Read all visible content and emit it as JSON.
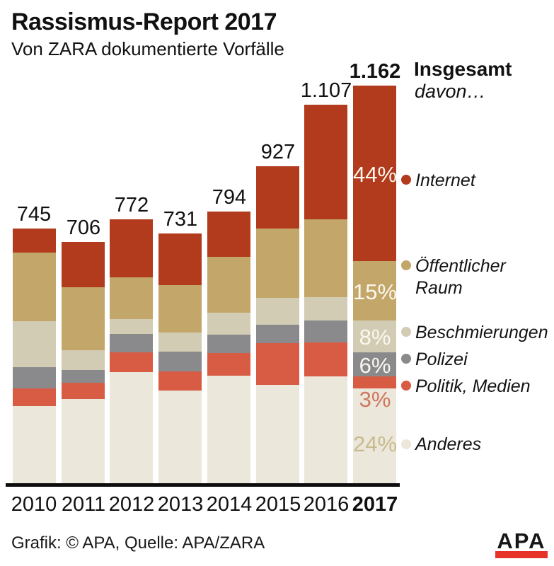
{
  "title": "Rassismus-Report 2017",
  "subtitle": "Von ZARA dokumentierte Vorfälle",
  "header": {
    "insgesamt": "Insgesamt",
    "davon": "davon…"
  },
  "footer": {
    "credit": "Grafik: © APA, Quelle: APA/ZARA",
    "logo_text": "APA"
  },
  "colors": {
    "internet_red": "#b23a1d",
    "oeffentlicher_tan": "#c3a76a",
    "beschmierungen_light": "#d2ccb4",
    "polizei_gray": "#8a8a8c",
    "politik_salmon": "#d85b44",
    "anderes_cream": "#ebe7da",
    "axis_black": "#0e0e0e",
    "logo_red": "#e63329",
    "pct_white": "#fbf7ee",
    "pct_salmon": "#cf7661",
    "pct_tan": "#c9ba8e"
  },
  "chart_data": {
    "type": "bar",
    "stacked": true,
    "title": "Rassismus-Report 2017",
    "subtitle": "Von ZARA dokumentierte Vorfälle",
    "categories": [
      "2010",
      "2011",
      "2012",
      "2013",
      "2014",
      "2015",
      "2016",
      "2017"
    ],
    "totals": [
      745,
      706,
      772,
      731,
      794,
      927,
      1107,
      1162
    ],
    "total_labels": [
      "745",
      "706",
      "772",
      "731",
      "794",
      "927",
      "1.107",
      "1.162"
    ],
    "legend_position": "right",
    "grid": false,
    "series": [
      {
        "name": "Internet",
        "color": "#b23a1d",
        "pct_2017": "44%",
        "pct_color": "#fbf7ee",
        "values": [
          70,
          132,
          169,
          151,
          132,
          182,
          336,
          511
        ]
      },
      {
        "name": "Öffentlicher Raum",
        "color": "#c3a76a",
        "pct_2017": "15%",
        "pct_color": "#fbf7ee",
        "values": [
          200,
          184,
          122,
          138,
          163,
          202,
          227,
          174
        ]
      },
      {
        "name": "Beschmierungen",
        "color": "#d2ccb4",
        "pct_2017": "8%",
        "pct_color": "#fbf7ee",
        "values": [
          134,
          58,
          43,
          56,
          64,
          78,
          68,
          93
        ]
      },
      {
        "name": "Polizei",
        "color": "#8a8a8c",
        "pct_2017": "6%",
        "pct_color": "#fbf7ee",
        "values": [
          62,
          37,
          54,
          58,
          54,
          54,
          64,
          70
        ]
      },
      {
        "name": "Politik, Medien",
        "color": "#d85b44",
        "pct_2017": "3%",
        "pct_color": "#cf7661",
        "values": [
          52,
          47,
          58,
          56,
          66,
          122,
          99,
          35
        ]
      },
      {
        "name": "Anderes",
        "color": "#ebe7da",
        "pct_2017": "24%",
        "pct_color": "#c9ba8e",
        "values": [
          227,
          248,
          326,
          272,
          315,
          289,
          313,
          279
        ]
      }
    ]
  }
}
